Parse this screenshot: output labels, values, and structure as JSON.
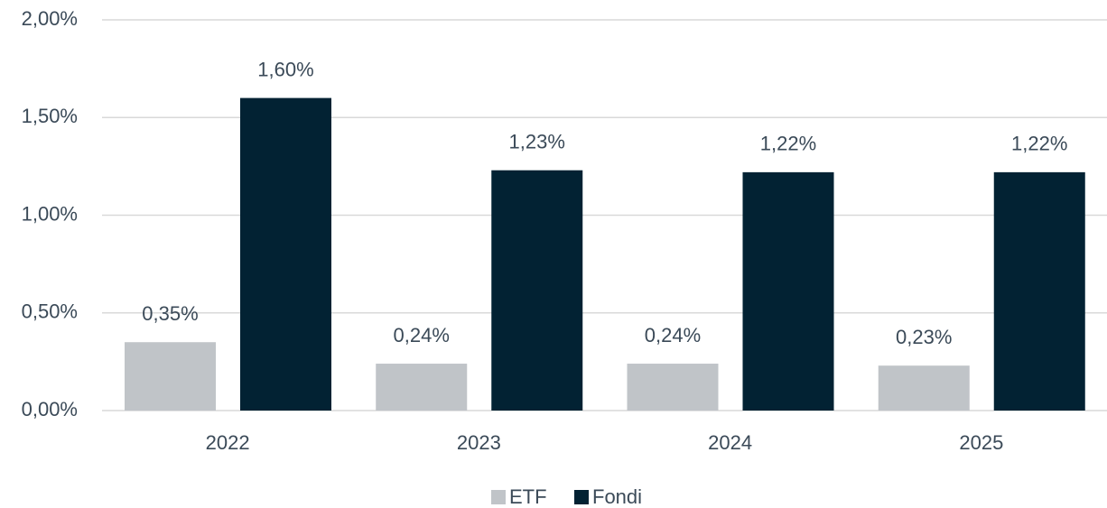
{
  "chart_data": {
    "type": "bar",
    "categories": [
      "2022",
      "2023",
      "2024",
      "2025"
    ],
    "series": [
      {
        "name": "ETF",
        "color": "#c0c4c8",
        "values": [
          0.35,
          0.24,
          0.24,
          0.23
        ],
        "value_labels": [
          "0,35%",
          "0,24%",
          "0,24%",
          "0,23%"
        ]
      },
      {
        "name": "Fondi",
        "color": "#022233",
        "values": [
          1.6,
          1.23,
          1.22,
          1.22
        ],
        "value_labels": [
          "1,60%",
          "1,23%",
          "1,22%",
          "1,22%"
        ]
      }
    ],
    "ylim": [
      0,
      2
    ],
    "yticks": [
      {
        "value": 0,
        "label": "0,00%"
      },
      {
        "value": 0.5,
        "label": "0,50%"
      },
      {
        "value": 1,
        "label": "1,00%"
      },
      {
        "value": 1.5,
        "label": "1,50%"
      },
      {
        "value": 2,
        "label": "2,00%"
      }
    ],
    "grid": true,
    "legend": "bottom"
  }
}
